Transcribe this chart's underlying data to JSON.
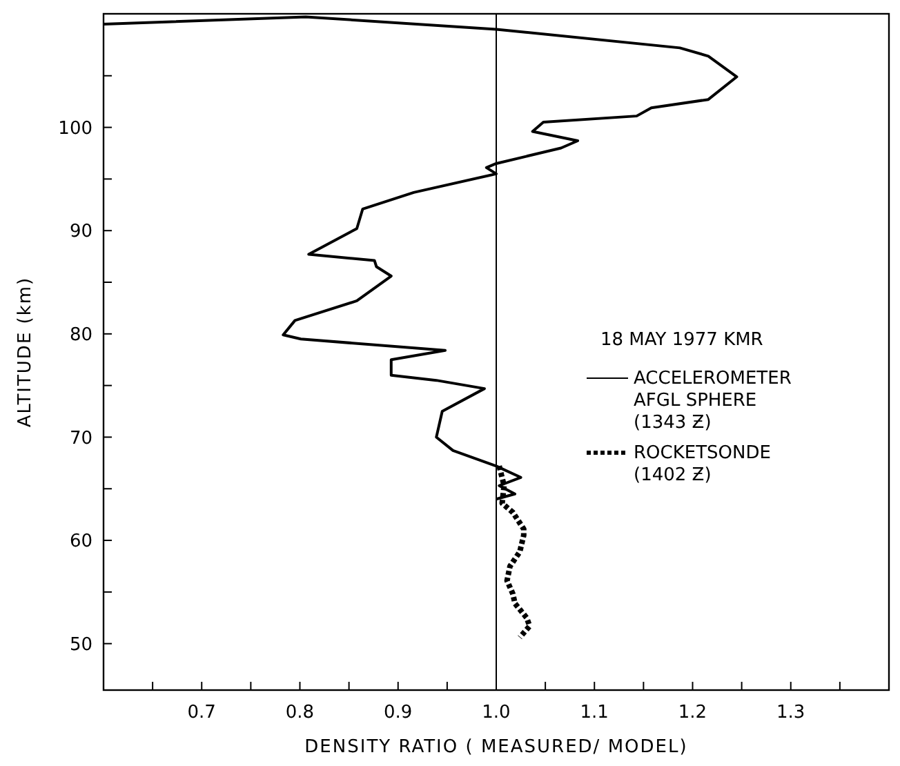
{
  "chart_data": {
    "type": "line",
    "xlabel": "DENSITY RATIO ( MEASURED/ MODEL)",
    "ylabel": "ALTITUDE (km)",
    "legend_title": "18 MAY 1977 KMR",
    "legend": "right",
    "grid": false,
    "xlim": [
      0.6,
      1.4
    ],
    "ylim": [
      45.5,
      111
    ],
    "xticks": [
      {
        "value": 0.65,
        "label": null
      },
      0.7,
      {
        "value": 0.75,
        "label": null
      },
      0.8,
      {
        "value": 0.85,
        "label": null
      },
      0.9,
      {
        "value": 0.95,
        "label": null
      },
      {
        "value": 1.0,
        "label": "1.0"
      },
      {
        "value": 1.05,
        "label": null
      },
      1.1,
      {
        "value": 1.15,
        "label": null
      },
      1.2,
      {
        "value": 1.25,
        "label": null
      },
      1.3,
      {
        "value": 1.35,
        "label": null
      }
    ],
    "yticks": [
      50,
      {
        "value": 55,
        "label": null
      },
      60,
      {
        "value": 65,
        "label": null
      },
      70,
      {
        "value": 75,
        "label": null
      },
      80,
      {
        "value": 85,
        "label": null
      },
      90,
      {
        "value": 95,
        "label": null
      },
      100,
      {
        "value": 105,
        "label": null
      }
    ],
    "ref_lines": [
      {
        "axis": "x",
        "value": 1.0,
        "color": "#000000"
      }
    ],
    "series": [
      {
        "name": "ACCELEROMETER\nAFGL SPHERE\n(1343 Ƶ)",
        "color": "#000000",
        "line_style": "solid",
        "x": [
          0.6,
          0.806,
          1.0,
          1.187,
          1.216,
          1.245,
          1.216,
          1.158,
          1.143,
          1.048,
          1.037,
          1.083,
          1.066,
          1.0,
          0.99,
          1.0,
          0.916,
          0.864,
          0.858,
          0.809,
          0.876,
          0.878,
          0.893,
          0.858,
          0.795,
          0.783,
          0.801,
          0.948,
          0.893,
          0.893,
          0.939,
          0.988,
          0.945,
          0.939,
          0.956,
          1.0,
          1.025,
          1.003,
          1.019,
          1.0
        ],
        "values": [
          110.0,
          110.7,
          109.5,
          107.7,
          106.9,
          104.9,
          102.7,
          101.9,
          101.1,
          100.5,
          99.6,
          98.7,
          98.0,
          96.5,
          96.1,
          95.5,
          93.7,
          92.1,
          90.2,
          87.7,
          87.1,
          86.5,
          85.6,
          83.2,
          81.3,
          79.9,
          79.5,
          78.4,
          77.5,
          76.0,
          75.5,
          74.7,
          72.5,
          70.0,
          68.7,
          67.2,
          66.1,
          65.3,
          64.5,
          64.0
        ]
      },
      {
        "name": "ROCKETSONDE\n(1402 Ƶ)",
        "color": "#000000",
        "line_style": "dotted",
        "x": [
          1.003,
          1.008,
          1.006,
          1.017,
          1.028,
          1.028,
          1.024,
          1.014,
          1.011,
          1.017,
          1.019,
          1.031,
          1.034,
          1.024
        ],
        "values": [
          67.2,
          65.3,
          63.6,
          62.7,
          61.1,
          60.5,
          58.9,
          57.5,
          56.1,
          54.8,
          53.9,
          52.5,
          51.7,
          50.6
        ]
      }
    ]
  }
}
